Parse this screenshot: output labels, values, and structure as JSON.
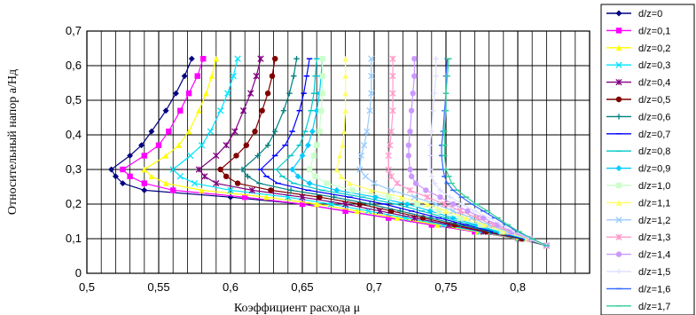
{
  "chart_data": {
    "type": "line",
    "title": "",
    "xlabel": "Коэффициент расхода μ",
    "ylabel": "Относительный напор a/Hд",
    "xlim": [
      0.5,
      0.85
    ],
    "ylim": [
      0,
      0.7
    ],
    "xticks": [
      "0,5",
      "0,55",
      "0,6",
      "0,65",
      "0,7",
      "0,75",
      "0,8"
    ],
    "yticks": [
      "0",
      "0,1",
      "0,2",
      "0,3",
      "0,4",
      "0,5",
      "0,6",
      "0,7"
    ],
    "grid": true,
    "legend_position": "right",
    "y_levels": [
      0.08,
      0.1,
      0.12,
      0.14,
      0.16,
      0.18,
      0.2,
      0.22,
      0.24,
      0.26,
      0.28,
      0.3,
      0.34,
      0.37,
      0.41,
      0.47,
      0.52,
      0.57,
      0.62
    ],
    "series": [
      {
        "name": "d/z=0",
        "color": "#000080",
        "marker": "diamond",
        "x": [
          0.82,
          0.8,
          0.77,
          0.74,
          0.71,
          0.68,
          0.65,
          0.6,
          0.54,
          0.525,
          0.52,
          0.517,
          0.53,
          0.538,
          0.545,
          0.555,
          0.562,
          0.568,
          0.573
        ]
      },
      {
        "name": "d/z=0,1",
        "color": "#ff00ff",
        "marker": "square",
        "x": [
          0.82,
          0.8,
          0.77,
          0.74,
          0.71,
          0.68,
          0.65,
          0.61,
          0.56,
          0.54,
          0.53,
          0.525,
          0.54,
          0.55,
          0.557,
          0.565,
          0.571,
          0.577,
          0.581
        ]
      },
      {
        "name": "d/z=0,2",
        "color": "#ffff00",
        "marker": "triangle",
        "x": [
          0.82,
          0.8,
          0.772,
          0.744,
          0.716,
          0.688,
          0.66,
          0.625,
          0.58,
          0.555,
          0.545,
          0.54,
          0.555,
          0.564,
          0.571,
          0.578,
          0.583,
          0.587,
          0.59
        ]
      },
      {
        "name": "d/z=0,3",
        "color": "#00e5ff",
        "marker": "x",
        "x": [
          0.82,
          0.801,
          0.774,
          0.748,
          0.722,
          0.696,
          0.67,
          0.64,
          0.6,
          0.575,
          0.565,
          0.56,
          0.572,
          0.58,
          0.586,
          0.593,
          0.598,
          0.602,
          0.605
        ]
      },
      {
        "name": "d/z=0,4",
        "color": "#800080",
        "marker": "star",
        "x": [
          0.82,
          0.802,
          0.776,
          0.752,
          0.728,
          0.704,
          0.68,
          0.65,
          0.615,
          0.59,
          0.582,
          0.578,
          0.59,
          0.597,
          0.603,
          0.609,
          0.614,
          0.618,
          0.621
        ]
      },
      {
        "name": "d/z=0,5",
        "color": "#800000",
        "marker": "circle",
        "x": [
          0.82,
          0.803,
          0.778,
          0.756,
          0.734,
          0.712,
          0.69,
          0.662,
          0.628,
          0.605,
          0.597,
          0.593,
          0.604,
          0.611,
          0.617,
          0.622,
          0.626,
          0.629,
          0.631
        ]
      },
      {
        "name": "d/z=0,6",
        "color": "#008080",
        "marker": "plus",
        "x": [
          0.82,
          0.804,
          0.781,
          0.76,
          0.739,
          0.718,
          0.697,
          0.672,
          0.642,
          0.62,
          0.612,
          0.608,
          0.619,
          0.626,
          0.631,
          0.637,
          0.641,
          0.644,
          0.646
        ]
      },
      {
        "name": "d/z=0,7",
        "color": "#0000ff",
        "marker": "dash",
        "x": [
          0.82,
          0.805,
          0.783,
          0.764,
          0.745,
          0.726,
          0.707,
          0.683,
          0.654,
          0.633,
          0.625,
          0.621,
          0.631,
          0.638,
          0.643,
          0.648,
          0.651,
          0.653,
          0.655
        ]
      },
      {
        "name": "d/z=0,8",
        "color": "#00c8c8",
        "marker": "dash",
        "x": [
          0.82,
          0.806,
          0.785,
          0.768,
          0.75,
          0.733,
          0.715,
          0.692,
          0.664,
          0.644,
          0.636,
          0.632,
          0.642,
          0.648,
          0.652,
          0.656,
          0.658,
          0.659,
          0.66
        ]
      },
      {
        "name": "d/z=0,9",
        "color": "#00ccff",
        "marker": "diamond",
        "x": [
          0.82,
          0.806,
          0.787,
          0.771,
          0.755,
          0.739,
          0.723,
          0.701,
          0.674,
          0.655,
          0.647,
          0.643,
          0.65,
          0.654,
          0.657,
          0.66,
          0.662,
          0.663,
          0.664
        ]
      },
      {
        "name": "d/z=1,0",
        "color": "#ccffcc",
        "marker": "square",
        "x": [
          0.82,
          0.807,
          0.789,
          0.774,
          0.76,
          0.745,
          0.73,
          0.71,
          0.685,
          0.667,
          0.659,
          0.655,
          0.658,
          0.66,
          0.662,
          0.663,
          0.664,
          0.664,
          0.664
        ]
      },
      {
        "name": "d/z=1,1",
        "color": "#ffff66",
        "marker": "triangle",
        "x": [
          0.82,
          0.807,
          0.791,
          0.777,
          0.764,
          0.75,
          0.737,
          0.719,
          0.698,
          0.683,
          0.677,
          0.674,
          0.676,
          0.678,
          0.679,
          0.68,
          0.68,
          0.68,
          0.68
        ]
      },
      {
        "name": "d/z=1,2",
        "color": "#99ccff",
        "marker": "x",
        "x": [
          0.82,
          0.808,
          0.793,
          0.78,
          0.768,
          0.755,
          0.743,
          0.728,
          0.712,
          0.7,
          0.694,
          0.69,
          0.691,
          0.693,
          0.695,
          0.697,
          0.698,
          0.698,
          0.698
        ]
      },
      {
        "name": "d/z=1,3",
        "color": "#ff99cc",
        "marker": "star",
        "x": [
          0.82,
          0.808,
          0.795,
          0.783,
          0.772,
          0.76,
          0.749,
          0.737,
          0.725,
          0.716,
          0.712,
          0.71,
          0.71,
          0.711,
          0.712,
          0.713,
          0.713,
          0.713,
          0.713
        ]
      },
      {
        "name": "d/z=1,4",
        "color": "#cc99ff",
        "marker": "circle",
        "x": [
          0.82,
          0.809,
          0.796,
          0.786,
          0.776,
          0.765,
          0.755,
          0.746,
          0.736,
          0.729,
          0.726,
          0.725,
          0.724,
          0.724,
          0.725,
          0.726,
          0.727,
          0.728,
          0.728
        ]
      },
      {
        "name": "d/z=1,5",
        "color": "#e0e0ff",
        "marker": "plus",
        "x": [
          0.82,
          0.809,
          0.798,
          0.789,
          0.78,
          0.77,
          0.761,
          0.753,
          0.746,
          0.742,
          0.74,
          0.739,
          0.739,
          0.739,
          0.74,
          0.741,
          0.742,
          0.743,
          0.743
        ]
      },
      {
        "name": "d/z=1,6",
        "color": "#3366ff",
        "marker": "dash",
        "x": [
          0.82,
          0.81,
          0.8,
          0.792,
          0.784,
          0.776,
          0.768,
          0.761,
          0.755,
          0.751,
          0.749,
          0.748,
          0.747,
          0.747,
          0.748,
          0.749,
          0.75,
          0.75,
          0.751
        ]
      },
      {
        "name": "d/z=1,7",
        "color": "#33cc99",
        "marker": "dash",
        "x": [
          0.82,
          0.81,
          0.801,
          0.793,
          0.786,
          0.779,
          0.771,
          0.764,
          0.758,
          0.754,
          0.752,
          0.75,
          0.749,
          0.749,
          0.749,
          0.75,
          0.75,
          0.751,
          0.752
        ]
      }
    ]
  }
}
